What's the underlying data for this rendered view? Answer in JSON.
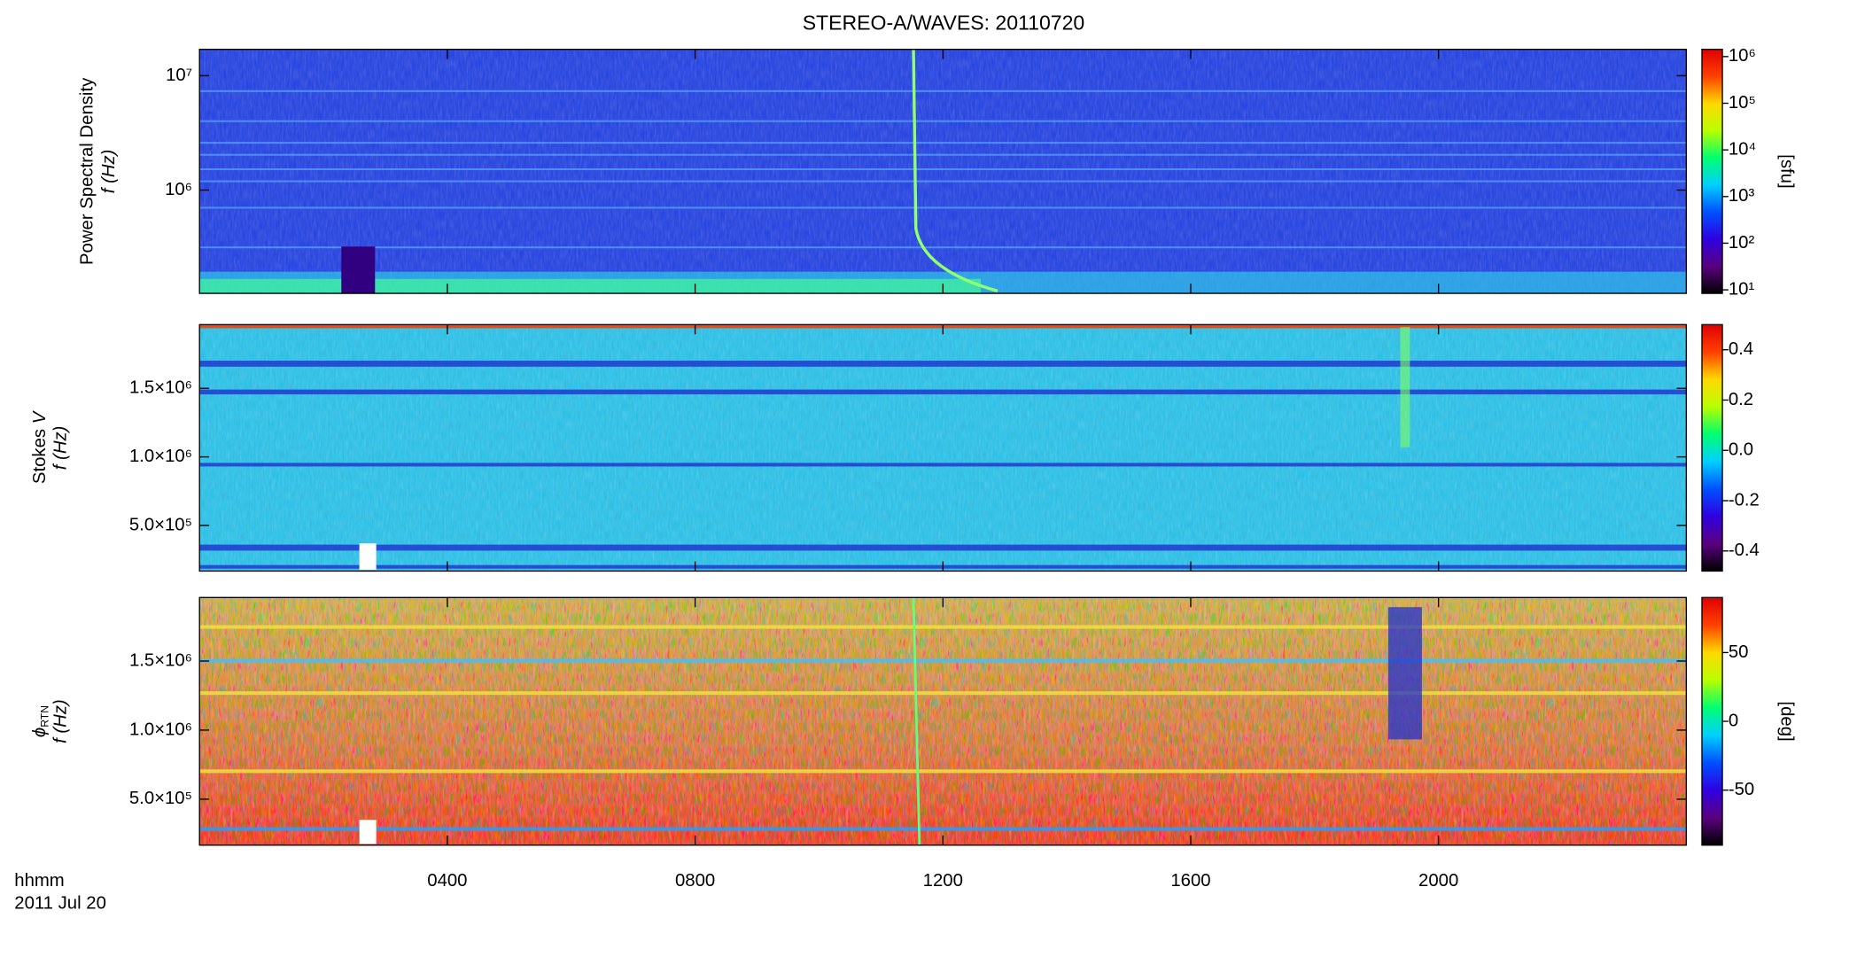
{
  "chart_data": [
    {
      "type": "heatmap",
      "title": "STEREO-A/WAVES: 20110720",
      "ylabel": "Power Spectral Density",
      "ylabel2": "f (Hz)",
      "yscale": "log",
      "ylim": [
        125000,
        17000000
      ],
      "yticks": [
        {
          "value": 1000000,
          "label": "10⁶"
        },
        {
          "value": 10000000,
          "label": "10⁷"
        }
      ],
      "xlim": [
        0,
        24
      ],
      "colorbar": {
        "scale": "log",
        "clim": [
          8.4,
          1430000
        ],
        "label": "[sfu]",
        "ticks": [
          {
            "value": 10,
            "label": "10¹"
          },
          {
            "value": 100,
            "label": "10²"
          },
          {
            "value": 1000,
            "label": "10³"
          },
          {
            "value": 10000,
            "label": "10⁴"
          },
          {
            "value": 100000,
            "label": "10⁵"
          },
          {
            "value": 1000000,
            "label": "10⁶"
          }
        ],
        "colormap": [
          "#000000",
          "#5a007f",
          "#3000e0",
          "#0050ff",
          "#00d0ff",
          "#00ff70",
          "#b8ff00",
          "#ffd800",
          "#ff4000",
          "#e00000"
        ]
      }
    },
    {
      "type": "heatmap",
      "ylabel": "Stokes",
      "ylabel_symbol": "V",
      "ylabel2": "f (Hz)",
      "yscale": "linear",
      "ylim": [
        167000,
        1965000
      ],
      "yticks": [
        {
          "value": 500000,
          "label": "5.0×10⁵"
        },
        {
          "value": 1000000,
          "label": "1.0×10⁶"
        },
        {
          "value": 1500000,
          "label": "1.5×10⁶"
        }
      ],
      "xlim": [
        0,
        24
      ],
      "colorbar": {
        "scale": "linear",
        "clim": [
          -0.48,
          0.5
        ],
        "ticks": [
          -0.4,
          -0.2,
          {
            "value": 0,
            "label": "0.0"
          },
          0.2,
          0.4
        ],
        "colormap": [
          "#000000",
          "#5a007f",
          "#3000e0",
          "#0050ff",
          "#00d0ff",
          "#00ff70",
          "#b8ff00",
          "#ffd800",
          "#ff4000",
          "#e00000"
        ]
      }
    },
    {
      "type": "heatmap",
      "ylabel_symbol": "ϕ",
      "ylabel_subscript": "RTN",
      "ylabel2": "f (Hz)",
      "yscale": "linear",
      "ylim": [
        167000,
        1960000
      ],
      "yticks": [
        {
          "value": 500000,
          "label": "5.0×10⁵"
        },
        {
          "value": 1000000,
          "label": "1.0×10⁶"
        },
        {
          "value": 1500000,
          "label": "1.5×10⁶"
        }
      ],
      "xlim": [
        0,
        24
      ],
      "xticks": [
        {
          "value": 4,
          "label": "0400"
        },
        {
          "value": 8,
          "label": "0800"
        },
        {
          "value": 12,
          "label": "1200"
        },
        {
          "value": 16,
          "label": "1600"
        },
        {
          "value": 20,
          "label": "2000"
        }
      ],
      "xlabel": "hhmm",
      "date": "2011 Jul 20",
      "colorbar": {
        "scale": "linear",
        "clim": [
          -90,
          90
        ],
        "label": "[deg]",
        "ticks": [
          -50,
          0,
          50
        ],
        "colormap": [
          "#000000",
          "#5a007f",
          "#3000e0",
          "#0050ff",
          "#00d0ff",
          "#00ff70",
          "#b8ff00",
          "#ffd800",
          "#ff4000",
          "#e00000"
        ]
      }
    }
  ]
}
